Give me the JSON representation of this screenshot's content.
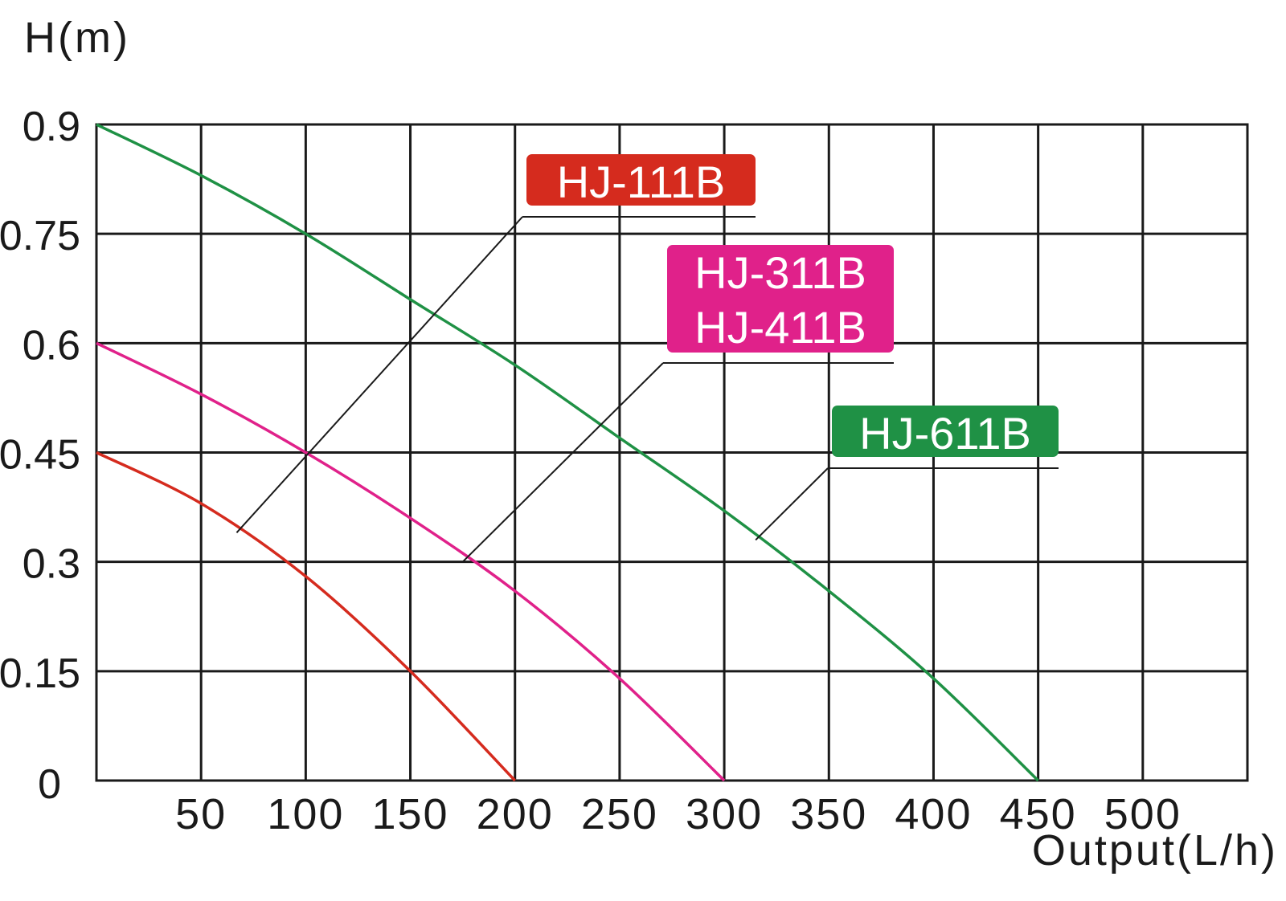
{
  "chart_data": {
    "type": "line",
    "ylabel": "H(m)",
    "xlabel": "Output(L/h)",
    "xlim": [
      0,
      550
    ],
    "ylim": [
      0,
      0.9
    ],
    "x_ticks": [
      50,
      100,
      150,
      200,
      250,
      300,
      350,
      400,
      450,
      500
    ],
    "y_ticks": [
      "0",
      "0.15",
      "0.3",
      "0.45",
      "0.6",
      "0.75",
      "0.9"
    ],
    "grid": true,
    "series": [
      {
        "name": "HJ-111B",
        "color": "#d52b1e",
        "x": [
          0,
          50,
          100,
          150,
          200
        ],
        "y": [
          0.45,
          0.38,
          0.28,
          0.15,
          0
        ]
      },
      {
        "name": "HJ-311B / HJ-411B",
        "color": "#e0218a",
        "x": [
          0,
          50,
          100,
          150,
          200,
          250,
          300
        ],
        "y": [
          0.6,
          0.53,
          0.45,
          0.36,
          0.26,
          0.14,
          0
        ]
      },
      {
        "name": "HJ-611B",
        "color": "#1f9145",
        "x": [
          0,
          50,
          100,
          150,
          200,
          250,
          300,
          350,
          400,
          450
        ],
        "y": [
          0.9,
          0.83,
          0.75,
          0.66,
          0.57,
          0.47,
          0.37,
          0.26,
          0.14,
          0
        ]
      }
    ],
    "labels": [
      {
        "series": 0,
        "lines": [
          "HJ-111B"
        ],
        "color": "#d52b1e",
        "anchor_x": 67,
        "anchor_y": 0.34
      },
      {
        "series": 1,
        "lines": [
          "HJ-311B",
          "HJ-411B"
        ],
        "color": "#e0218a",
        "anchor_x": 175,
        "anchor_y": 0.3
      },
      {
        "series": 2,
        "lines": [
          "HJ-611B"
        ],
        "color": "#1f9145",
        "anchor_x": 315,
        "anchor_y": 0.33
      }
    ]
  }
}
